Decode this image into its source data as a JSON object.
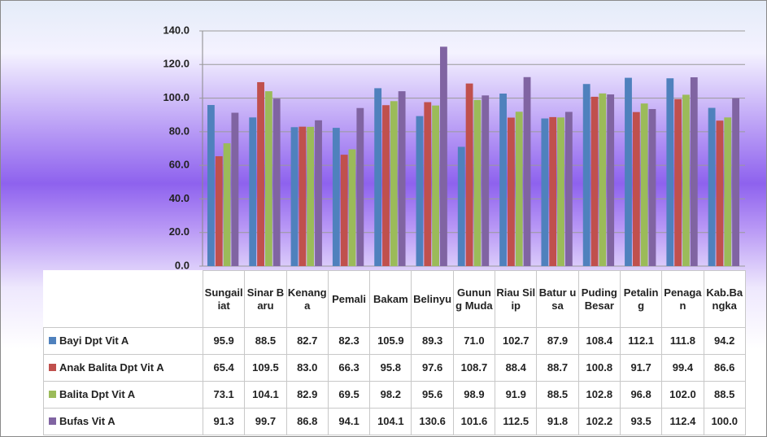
{
  "chart_data": {
    "type": "bar",
    "categories": [
      "Sungailiat",
      "Sinar Baru",
      "Kenanga",
      "Pemali",
      "Bakam",
      "Belinyu",
      "Gunung Muda",
      "Riau Silip",
      "Batur usa",
      "Puding Besar",
      "Petaling",
      "Penagan",
      "Kab.Bangka"
    ],
    "series": [
      {
        "name": "Bayi Dpt Vit A",
        "color": "#4f81bd",
        "values": [
          95.9,
          88.5,
          82.7,
          82.3,
          105.9,
          89.3,
          71.0,
          102.7,
          87.9,
          108.4,
          112.1,
          111.8,
          94.2
        ],
        "value_labels": [
          "95.9",
          "88.5",
          "82.7",
          "82.3",
          "105.9",
          "89.3",
          "71.0",
          "102.7",
          "87.9",
          "108.4",
          "112.1",
          "111.8",
          "94.2"
        ]
      },
      {
        "name": "Anak Balita Dpt Vit A",
        "color": "#c0504d",
        "values": [
          65.4,
          109.5,
          83.0,
          66.3,
          95.8,
          97.6,
          108.7,
          88.4,
          88.7,
          100.8,
          91.7,
          99.4,
          86.6
        ],
        "value_labels": [
          "65.4",
          "109.5",
          "83.0",
          "66.3",
          "95.8",
          "97.6",
          "108.7",
          "88.4",
          "88.7",
          "100.8",
          "91.7",
          "99.4",
          "86.6"
        ]
      },
      {
        "name": "Balita Dpt Vit A",
        "color": "#9bbb59",
        "values": [
          73.1,
          104.1,
          82.9,
          69.5,
          98.2,
          95.6,
          98.9,
          91.9,
          88.5,
          102.8,
          96.8,
          102.0,
          88.5
        ],
        "value_labels": [
          "73.1",
          "104.1",
          "82.9",
          "69.5",
          "98.2",
          "95.6",
          "98.9",
          "91.9",
          "88.5",
          "102.8",
          "96.8",
          "102.0",
          "88.5"
        ]
      },
      {
        "name": "Bufas Vit A",
        "color": "#8064a2",
        "values": [
          91.3,
          99.7,
          86.8,
          94.1,
          104.1,
          130.6,
          101.6,
          112.5,
          91.8,
          102.2,
          93.5,
          112.4,
          100.0
        ],
        "value_labels": [
          "91.3",
          "99.7",
          "86.8",
          "94.1",
          "104.1",
          "130.6",
          "101.6",
          "112.5",
          "91.8",
          "102.2",
          "93.5",
          "112.4",
          "100.0"
        ]
      }
    ],
    "ylim": [
      0,
      140
    ],
    "yticks": [
      {
        "value": 0,
        "label": "0.0"
      },
      {
        "value": 20,
        "label": "20.0"
      },
      {
        "value": 40,
        "label": "40.0"
      },
      {
        "value": 60,
        "label": "60.0"
      },
      {
        "value": 80,
        "label": "80.0"
      },
      {
        "value": 100,
        "label": "100.0"
      },
      {
        "value": 120,
        "label": "120.0"
      },
      {
        "value": 140,
        "label": "140.0"
      }
    ],
    "grid": true
  }
}
